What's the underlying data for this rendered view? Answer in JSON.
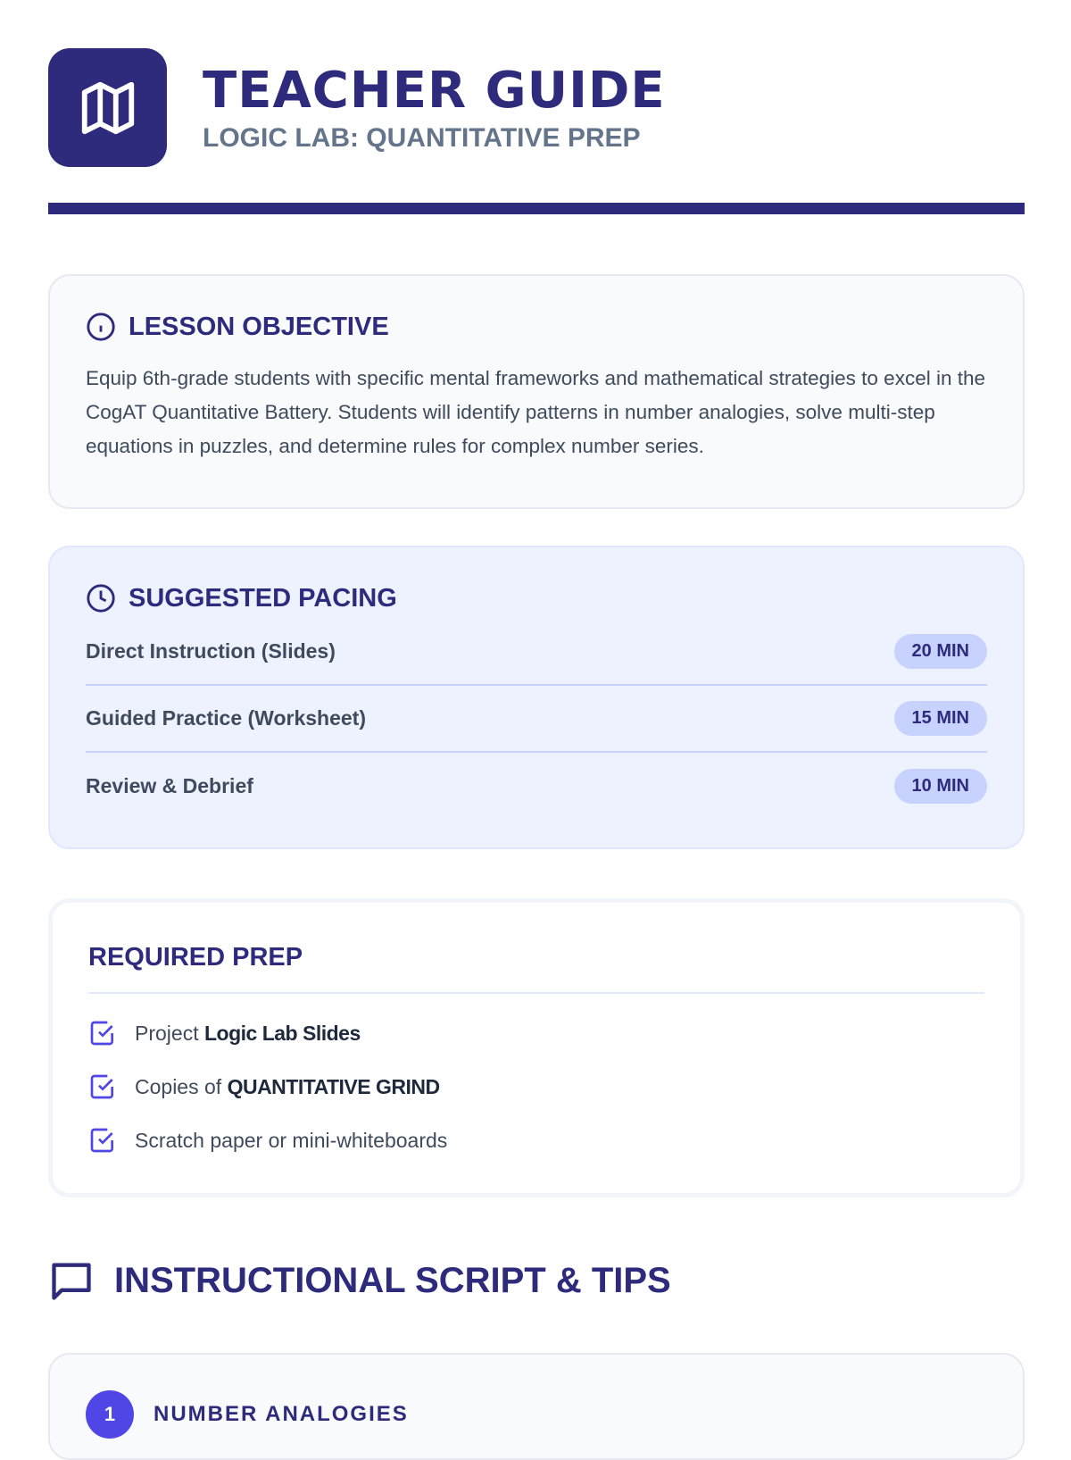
{
  "header": {
    "title": "TEACHER GUIDE",
    "subtitle": "LOGIC LAB: QUANTITATIVE PREP",
    "icon": "map-icon"
  },
  "objective": {
    "title": "LESSON OBJECTIVE",
    "icon": "info-icon",
    "text": "Equip 6th-grade students with specific mental frameworks and mathematical strategies to excel in the CogAT Quantitative Battery. Students will identify patterns in number analogies, solve multi-step equations in puzzles, and determine rules for complex number series."
  },
  "pacing": {
    "title": "SUGGESTED PACING",
    "icon": "clock-icon",
    "rows": [
      {
        "label": "Direct Instruction (Slides)",
        "time": "20 MIN"
      },
      {
        "label": "Guided Practice (Worksheet)",
        "time": "15 MIN"
      },
      {
        "label": "Review & Debrief",
        "time": "10 MIN"
      }
    ]
  },
  "prep": {
    "title": "REQUIRED PREP",
    "items": [
      {
        "pre": "Project ",
        "bold": "Logic Lab Slides"
      },
      {
        "pre": "Copies of ",
        "bold": "QUANTITATIVE GRIND"
      },
      {
        "pre": "Scratch paper or mini-whiteboards",
        "bold": ""
      }
    ]
  },
  "script": {
    "title": "INSTRUCTIONAL SCRIPT & TIPS",
    "icon": "message-square-icon",
    "steps": [
      {
        "number": "1",
        "title": "NUMBER ANALOGIES"
      }
    ]
  },
  "colors": {
    "primary": "#2e2a7c",
    "accent": "#4f46e5"
  }
}
